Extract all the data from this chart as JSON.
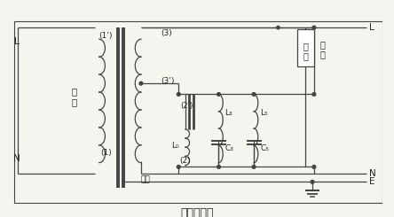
{
  "title": "电气原理图",
  "bg_color": "#f5f5f0",
  "line_color": "#444444",
  "text_color": "#222222",
  "fig_width": 4.44,
  "fig_height": 2.45,
  "dpi": 100,
  "border": [
    3,
    3,
    441,
    218
  ],
  "labels": {
    "L_left": "L",
    "N_left": "N",
    "L_right": "L",
    "N_right": "N",
    "E_right": "E",
    "input1": "输",
    "input2": "人",
    "output1": "输",
    "output2": "出",
    "load1": "负",
    "load2": "载",
    "iron_core": "铁芯",
    "p1prime": "(1’)",
    "p1": "(1)",
    "p2prime": "(2’)",
    "p2": "(2)",
    "p3": "(3)",
    "p3prime": "(3’)",
    "L0": "L₀",
    "L3": "L₃",
    "L5": "L₅",
    "C3": "C₃",
    "C5": "C₅"
  }
}
